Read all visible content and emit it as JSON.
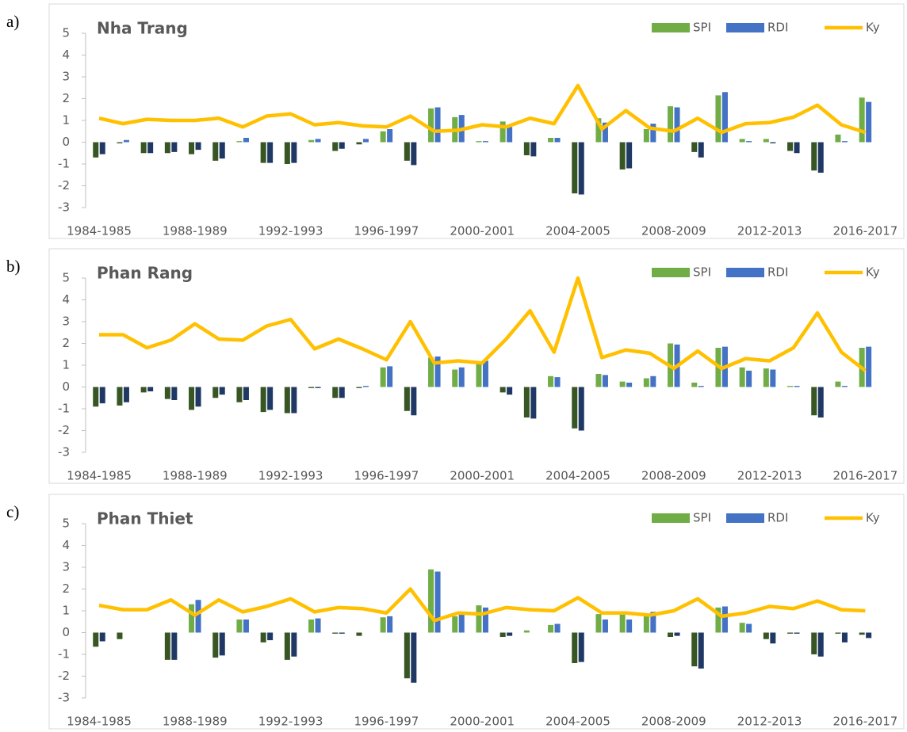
{
  "chart_data": [
    {
      "type": "combo",
      "label": "a)",
      "title": "Nha Trang",
      "categories": [
        "1984-1985",
        null,
        null,
        null,
        "1988-1989",
        null,
        null,
        null,
        "1992-1993",
        null,
        null,
        null,
        "1996-1997",
        null,
        null,
        null,
        "2000-2001",
        null,
        null,
        null,
        "2004-2005",
        null,
        null,
        null,
        "2008-2009",
        null,
        null,
        null,
        "2012-2013",
        null,
        null,
        null,
        "2016-2017"
      ],
      "ylim": [
        -3,
        5
      ],
      "yticks": [
        -3,
        -2,
        -1,
        0,
        1,
        2,
        3,
        4,
        5
      ],
      "legend": "top-right",
      "series": [
        {
          "name": "SPI",
          "type": "bar",
          "color": "#70ad47",
          "negative_color": "#375623",
          "values": [
            -0.7,
            -0.05,
            -0.5,
            -0.5,
            -0.55,
            -0.85,
            0.05,
            -0.95,
            -1.0,
            0.1,
            -0.4,
            -0.1,
            0.5,
            -0.85,
            1.55,
            1.15,
            0.05,
            0.95,
            -0.6,
            0.2,
            -2.35,
            1.1,
            -1.25,
            0.6,
            1.65,
            -0.45,
            2.15,
            0.15,
            0.15,
            -0.4,
            -1.3,
            0.35,
            2.05
          ]
        },
        {
          "name": "RDI",
          "type": "bar",
          "color": "#4472c4",
          "negative_color": "#1f3864",
          "values": [
            -0.55,
            0.1,
            -0.5,
            -0.45,
            -0.35,
            -0.75,
            0.2,
            -0.95,
            -0.95,
            0.15,
            -0.3,
            0.15,
            0.6,
            -1.05,
            1.6,
            1.25,
            0.05,
            0.7,
            -0.65,
            0.2,
            -2.4,
            0.9,
            -1.2,
            0.85,
            1.6,
            -0.7,
            2.3,
            0.05,
            -0.05,
            -0.5,
            -1.4,
            0.05,
            1.85
          ]
        },
        {
          "name": "Ky",
          "type": "line",
          "color": "#ffc000",
          "values": [
            1.1,
            0.85,
            1.05,
            1.0,
            1.0,
            1.1,
            0.7,
            1.2,
            1.3,
            0.8,
            0.9,
            0.75,
            0.7,
            1.2,
            0.5,
            0.55,
            0.8,
            0.7,
            1.1,
            0.85,
            2.6,
            0.6,
            1.45,
            0.65,
            0.5,
            1.1,
            0.45,
            0.85,
            0.9,
            1.15,
            1.7,
            0.8,
            0.45
          ]
        }
      ]
    },
    {
      "type": "combo",
      "label": "b)",
      "title": "Phan Rang",
      "categories": [
        "1984-1985",
        null,
        null,
        null,
        "1988-1989",
        null,
        null,
        null,
        "1992-1993",
        null,
        null,
        null,
        "1996-1997",
        null,
        null,
        null,
        "2000-2001",
        null,
        null,
        null,
        "2004-2005",
        null,
        null,
        null,
        "2008-2009",
        null,
        null,
        null,
        "2012-2013",
        null,
        null,
        null,
        "2016-2017"
      ],
      "ylim": [
        -3,
        5
      ],
      "yticks": [
        -3,
        -2,
        -1,
        0,
        1,
        2,
        3,
        4,
        5
      ],
      "legend": "top-right",
      "series": [
        {
          "name": "SPI",
          "type": "bar",
          "color": "#70ad47",
          "negative_color": "#375623",
          "values": [
            -0.9,
            -0.85,
            -0.25,
            -0.55,
            -1.05,
            -0.5,
            -0.7,
            -1.15,
            -1.2,
            -0.05,
            -0.5,
            -0.05,
            0.9,
            -1.1,
            1.35,
            0.8,
            1.1,
            -0.25,
            -1.4,
            0.5,
            -1.9,
            0.6,
            0.25,
            0.4,
            2.0,
            0.2,
            1.8,
            0.9,
            0.85,
            0.05,
            -1.3,
            0.25,
            1.8
          ]
        },
        {
          "name": "RDI",
          "type": "bar",
          "color": "#4472c4",
          "negative_color": "#1f3864",
          "values": [
            -0.75,
            -0.7,
            -0.2,
            -0.6,
            -0.9,
            -0.35,
            -0.6,
            -1.05,
            -1.2,
            -0.05,
            -0.5,
            0.05,
            0.95,
            -1.3,
            1.4,
            0.9,
            1.2,
            -0.35,
            -1.45,
            0.45,
            -2.0,
            0.55,
            0.2,
            0.5,
            1.95,
            0.05,
            1.85,
            0.75,
            0.8,
            0.05,
            -1.4,
            0.05,
            1.85
          ]
        },
        {
          "name": "Ky",
          "type": "line",
          "color": "#ffc000",
          "values": [
            2.4,
            2.4,
            1.8,
            2.15,
            2.9,
            2.2,
            2.15,
            2.8,
            3.1,
            1.75,
            2.2,
            1.75,
            1.25,
            3.0,
            1.1,
            1.2,
            1.1,
            2.2,
            3.5,
            1.6,
            5.0,
            1.35,
            1.7,
            1.55,
            0.85,
            1.65,
            0.85,
            1.3,
            1.2,
            1.8,
            3.4,
            1.6,
            0.75
          ]
        }
      ]
    },
    {
      "type": "combo",
      "label": "c)",
      "title": "Phan Thiet",
      "categories": [
        "1984-1985",
        null,
        null,
        null,
        "1988-1989",
        null,
        null,
        null,
        "1992-1993",
        null,
        null,
        null,
        "1996-1997",
        null,
        null,
        null,
        "2000-2001",
        null,
        null,
        null,
        "2004-2005",
        null,
        null,
        null,
        "2008-2009",
        null,
        null,
        null,
        "2012-2013",
        null,
        null,
        null,
        "2016-2017"
      ],
      "ylim": [
        -3,
        5
      ],
      "yticks": [
        -3,
        -2,
        -1,
        0,
        1,
        2,
        3,
        4,
        5
      ],
      "legend": "top-right",
      "series": [
        {
          "name": "SPI",
          "type": "bar",
          "color": "#70ad47",
          "negative_color": "#375623",
          "values": [
            -0.65,
            -0.3,
            0,
            -1.25,
            1.3,
            -1.15,
            0.6,
            -0.45,
            -1.25,
            0.6,
            -0.05,
            -0.15,
            0.7,
            -2.1,
            2.9,
            0.75,
            1.25,
            -0.2,
            0.1,
            0.35,
            -1.4,
            0.85,
            0.85,
            0.75,
            -0.2,
            -1.55,
            1.15,
            0.45,
            -0.3,
            -0.05,
            -1.0,
            -0.05,
            -0.1
          ]
        },
        {
          "name": "RDI",
          "type": "bar",
          "color": "#4472c4",
          "negative_color": "#1f3864",
          "values": [
            -0.4,
            0,
            0,
            -1.25,
            1.5,
            -1.05,
            0.6,
            -0.35,
            -1.1,
            0.65,
            -0.05,
            0,
            0.75,
            -2.3,
            2.8,
            0.9,
            1.15,
            -0.15,
            0,
            0.4,
            -1.35,
            0.6,
            0.6,
            0.95,
            -0.15,
            -1.65,
            1.2,
            0.4,
            -0.5,
            -0.05,
            -1.1,
            -0.45,
            -0.25
          ]
        },
        {
          "name": "Ky",
          "type": "line",
          "color": "#ffc000",
          "values": [
            1.25,
            1.05,
            1.05,
            1.5,
            0.8,
            1.5,
            0.95,
            1.2,
            1.55,
            0.95,
            1.15,
            1.1,
            0.9,
            2.0,
            0.55,
            0.9,
            0.85,
            1.15,
            1.05,
            1.0,
            1.6,
            0.9,
            0.9,
            0.8,
            1.0,
            1.55,
            0.75,
            0.9,
            1.2,
            1.1,
            1.45,
            1.05,
            1.0
          ]
        }
      ]
    }
  ]
}
